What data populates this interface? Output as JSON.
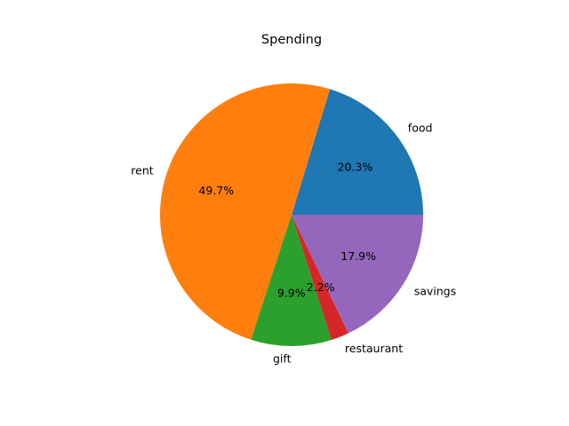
{
  "chart_data": {
    "type": "pie",
    "title": "Spending",
    "labels": [
      "food",
      "rent",
      "gift",
      "restaurant",
      "savings"
    ],
    "values": [
      20.3,
      49.7,
      9.9,
      2.2,
      17.9
    ],
    "percent_labels": [
      "20.3%",
      "49.7%",
      "9.9%",
      "2.2%",
      "17.9%"
    ],
    "colors": [
      "#1f77b4",
      "#ff7f0e",
      "#2ca02c",
      "#d62728",
      "#9467bd"
    ],
    "start_angle_deg": 0,
    "direction": "counterclockwise",
    "legend": "none"
  }
}
